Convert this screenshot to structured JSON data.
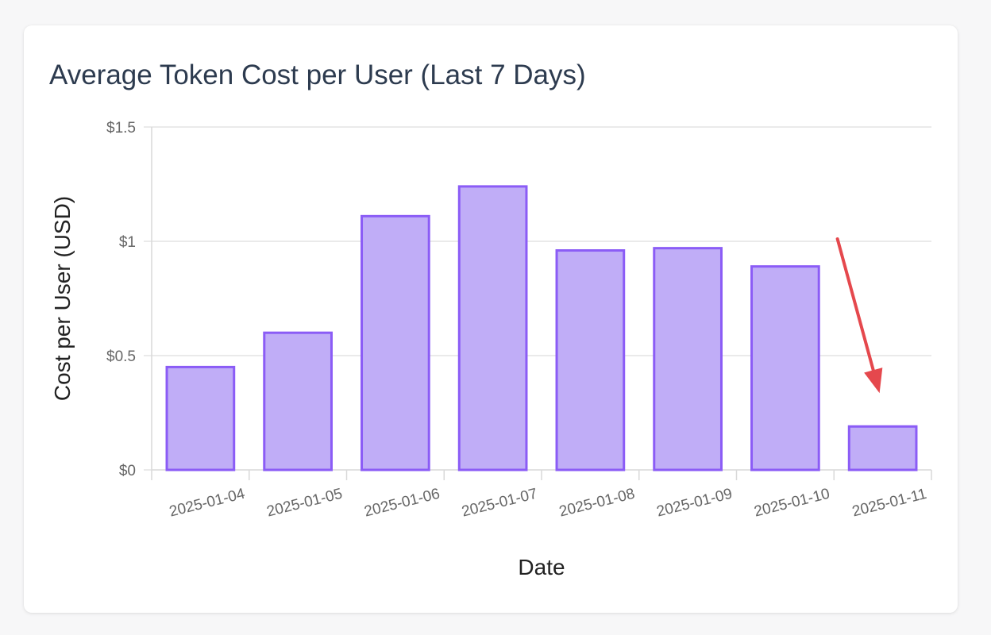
{
  "colors": {
    "bar_fill": "#c0adf7",
    "bar_stroke": "#8b5cf6",
    "grid": "#e3e3e3",
    "annotation_arrow": "#e5484d"
  },
  "chart_data": {
    "type": "bar",
    "title": "Average Token Cost per User (Last 7 Days)",
    "xlabel": "Date",
    "ylabel": "Cost per User (USD)",
    "categories": [
      "2025-01-04",
      "2025-01-05",
      "2025-01-06",
      "2025-01-07",
      "2025-01-08",
      "2025-01-09",
      "2025-01-10",
      "2025-01-11"
    ],
    "values": [
      0.45,
      0.6,
      1.11,
      1.24,
      0.96,
      0.97,
      0.89,
      0.19
    ],
    "ylim": [
      0,
      1.5
    ],
    "yticks": [
      0,
      0.5,
      1,
      1.5
    ],
    "ytick_labels": [
      "$0",
      "$0.5",
      "$1",
      "$1.5"
    ],
    "grid": true,
    "legend": "none",
    "annotations": [
      {
        "type": "arrow",
        "target_category": "2025-01-11"
      }
    ]
  }
}
